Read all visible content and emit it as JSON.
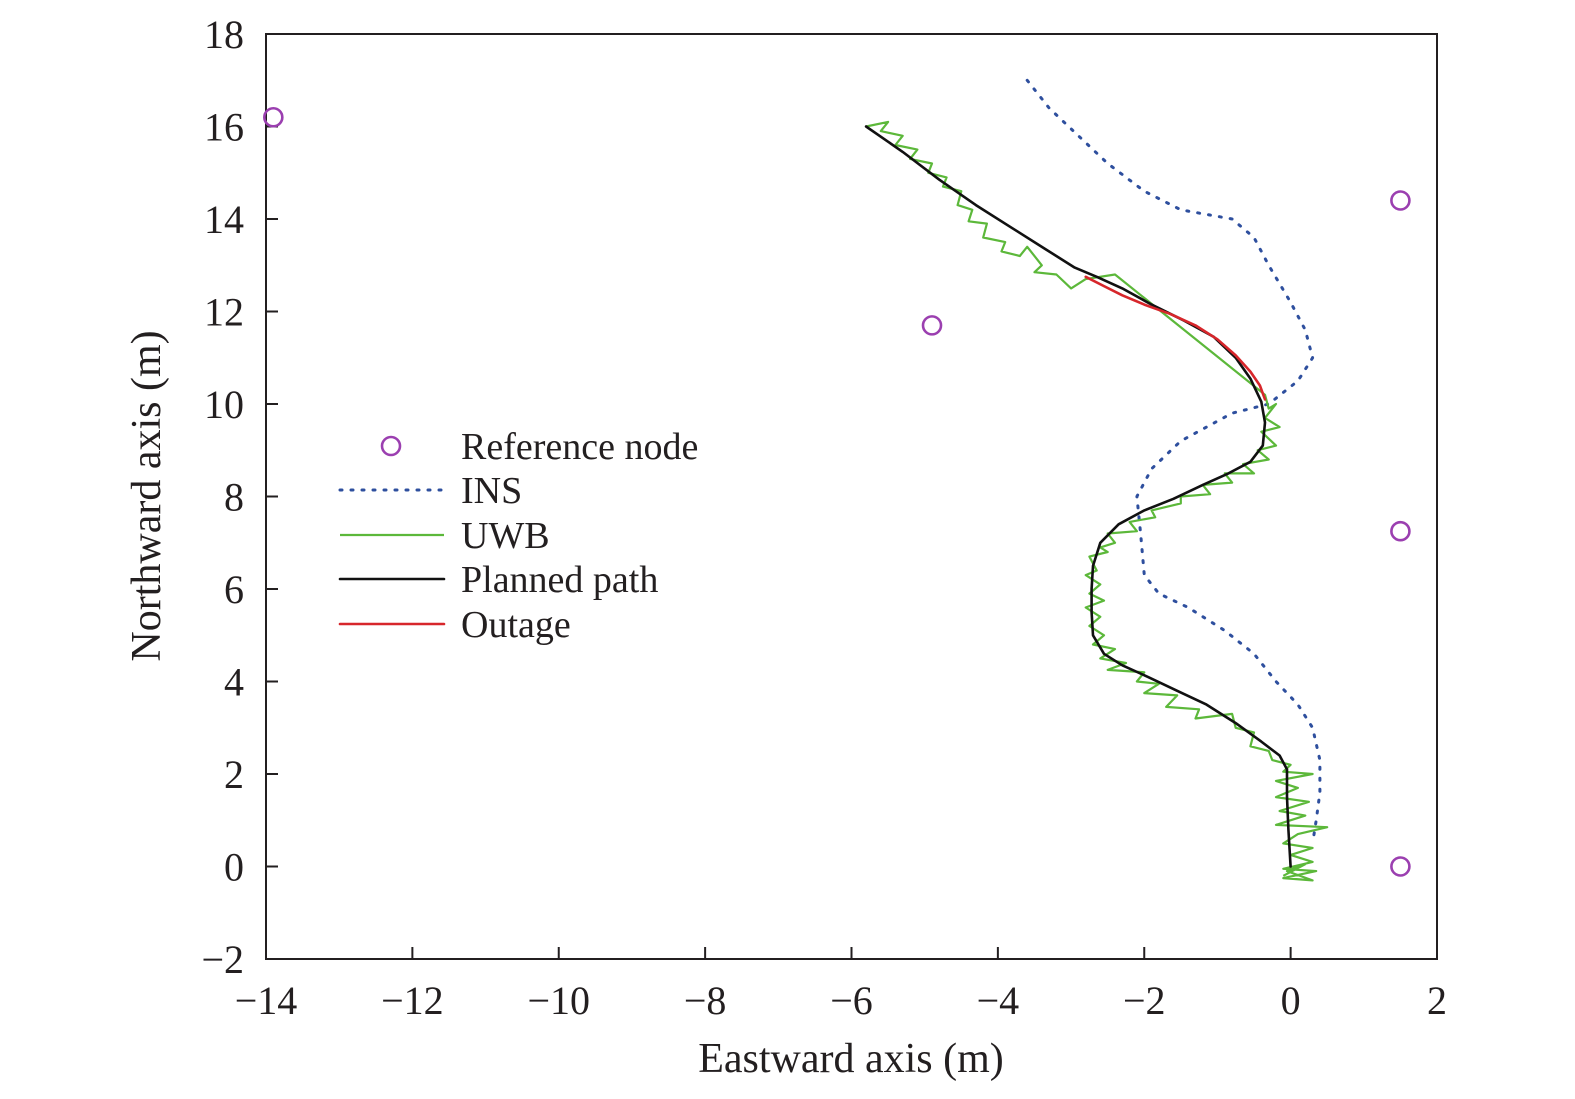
{
  "chart_data": {
    "type": "line",
    "title": "",
    "xlabel": "Eastward axis (m)",
    "ylabel": "Northward axis (m)",
    "xlim": [
      -14,
      2
    ],
    "ylim": [
      -2,
      18
    ],
    "xticks": [
      -14,
      -12,
      -10,
      -8,
      -6,
      -4,
      -2,
      0,
      2
    ],
    "yticks": [
      -2,
      0,
      2,
      4,
      6,
      8,
      10,
      12,
      14,
      16,
      18
    ],
    "xtick_labels": [
      "−14",
      "−12",
      "−10",
      "−8",
      "−6",
      "−4",
      "−2",
      "0",
      "2"
    ],
    "ytick_labels": [
      "−2",
      "0",
      "2",
      "4",
      "6",
      "8",
      "10",
      "12",
      "14",
      "16",
      "18"
    ],
    "grid": false,
    "legend_position": "left-center",
    "colors": {
      "reference": "#9b3fb0",
      "ins": "#2e4f9e",
      "uwb": "#5cb83a",
      "planned": "#111111",
      "outage": "#d7262b"
    },
    "series": [
      {
        "name": "Reference node",
        "kind": "markers",
        "points": [
          [
            -13.9,
            16.2
          ],
          [
            -4.9,
            11.7
          ],
          [
            1.5,
            14.4
          ],
          [
            1.5,
            7.25
          ],
          [
            1.5,
            0.0
          ]
        ]
      },
      {
        "name": "INS",
        "kind": "dotted-line",
        "points": [
          [
            -3.6,
            17.0
          ],
          [
            -3.3,
            16.4
          ],
          [
            -2.9,
            15.8
          ],
          [
            -2.5,
            15.2
          ],
          [
            -2.0,
            14.6
          ],
          [
            -1.5,
            14.2
          ],
          [
            -0.8,
            14.0
          ],
          [
            -0.5,
            13.6
          ],
          [
            -0.3,
            13.0
          ],
          [
            0.0,
            12.2
          ],
          [
            0.2,
            11.6
          ],
          [
            0.3,
            11.0
          ],
          [
            0.1,
            10.5
          ],
          [
            -0.3,
            10.0
          ],
          [
            -0.8,
            9.8
          ],
          [
            -1.5,
            9.2
          ],
          [
            -1.9,
            8.6
          ],
          [
            -2.1,
            8.0
          ],
          [
            -2.05,
            7.2
          ],
          [
            -2.0,
            6.3
          ],
          [
            -1.8,
            5.9
          ],
          [
            -1.4,
            5.6
          ],
          [
            -0.9,
            5.1
          ],
          [
            -0.5,
            4.6
          ],
          [
            -0.2,
            4.0
          ],
          [
            0.1,
            3.5
          ],
          [
            0.3,
            3.0
          ],
          [
            0.4,
            2.3
          ],
          [
            0.4,
            1.6
          ],
          [
            0.35,
            1.0
          ],
          [
            0.3,
            0.5
          ]
        ]
      },
      {
        "name": "UWB",
        "kind": "line",
        "points": [
          [
            -5.8,
            16.0
          ],
          [
            -5.5,
            16.1
          ],
          [
            -5.6,
            15.9
          ],
          [
            -5.3,
            15.8
          ],
          [
            -5.4,
            15.6
          ],
          [
            -5.1,
            15.5
          ],
          [
            -5.2,
            15.3
          ],
          [
            -4.9,
            15.2
          ],
          [
            -4.95,
            15.0
          ],
          [
            -4.7,
            14.9
          ],
          [
            -4.75,
            14.7
          ],
          [
            -4.5,
            14.6
          ],
          [
            -4.55,
            14.3
          ],
          [
            -4.35,
            14.2
          ],
          [
            -4.4,
            13.95
          ],
          [
            -4.15,
            13.9
          ],
          [
            -4.2,
            13.6
          ],
          [
            -3.9,
            13.5
          ],
          [
            -3.95,
            13.3
          ],
          [
            -3.7,
            13.2
          ],
          [
            -3.6,
            13.4
          ],
          [
            -3.4,
            13.0
          ],
          [
            -3.5,
            12.85
          ],
          [
            -3.2,
            12.8
          ],
          [
            -3.0,
            12.5
          ],
          [
            -2.8,
            12.7
          ],
          [
            -2.4,
            12.8
          ],
          [
            -0.35,
            10.2
          ],
          [
            -0.3,
            9.9
          ],
          [
            -0.2,
            10.0
          ],
          [
            -0.35,
            9.7
          ],
          [
            -0.15,
            9.5
          ],
          [
            -0.4,
            9.4
          ],
          [
            -0.2,
            9.1
          ],
          [
            -0.45,
            9.0
          ],
          [
            -0.3,
            8.8
          ],
          [
            -0.65,
            8.7
          ],
          [
            -0.5,
            8.5
          ],
          [
            -0.9,
            8.5
          ],
          [
            -0.8,
            8.3
          ],
          [
            -1.2,
            8.25
          ],
          [
            -1.1,
            8.05
          ],
          [
            -1.5,
            8.0
          ],
          [
            -1.5,
            7.85
          ],
          [
            -1.9,
            7.7
          ],
          [
            -1.85,
            7.55
          ],
          [
            -2.2,
            7.45
          ],
          [
            -2.1,
            7.25
          ],
          [
            -2.5,
            7.2
          ],
          [
            -2.4,
            7.0
          ],
          [
            -2.6,
            6.9
          ],
          [
            -2.5,
            6.8
          ],
          [
            -2.75,
            6.7
          ],
          [
            -2.65,
            6.4
          ],
          [
            -2.8,
            6.3
          ],
          [
            -2.6,
            6.1
          ],
          [
            -2.75,
            5.9
          ],
          [
            -2.55,
            5.75
          ],
          [
            -2.8,
            5.6
          ],
          [
            -2.6,
            5.4
          ],
          [
            -2.75,
            5.2
          ],
          [
            -2.55,
            5.0
          ],
          [
            -2.7,
            4.8
          ],
          [
            -2.4,
            4.7
          ],
          [
            -2.6,
            4.5
          ],
          [
            -2.25,
            4.4
          ],
          [
            -2.5,
            4.25
          ],
          [
            -2.0,
            4.2
          ],
          [
            -2.1,
            4.0
          ],
          [
            -1.8,
            3.95
          ],
          [
            -2.0,
            3.75
          ],
          [
            -1.55,
            3.7
          ],
          [
            -1.7,
            3.45
          ],
          [
            -1.25,
            3.4
          ],
          [
            -1.3,
            3.2
          ],
          [
            -0.8,
            3.3
          ],
          [
            -0.75,
            3.0
          ],
          [
            -0.5,
            2.9
          ],
          [
            -0.55,
            2.6
          ],
          [
            -0.3,
            2.5
          ],
          [
            -0.25,
            2.3
          ],
          [
            0.0,
            2.2
          ],
          [
            -0.1,
            2.05
          ],
          [
            0.3,
            2.0
          ],
          [
            -0.2,
            1.85
          ],
          [
            0.1,
            1.7
          ],
          [
            -0.2,
            1.5
          ],
          [
            0.25,
            1.4
          ],
          [
            -0.15,
            1.2
          ],
          [
            0.2,
            1.1
          ],
          [
            -0.2,
            0.9
          ],
          [
            0.5,
            0.85
          ],
          [
            0.1,
            0.7
          ],
          [
            -0.1,
            0.5
          ],
          [
            0.3,
            0.4
          ],
          [
            0.0,
            0.25
          ],
          [
            0.3,
            0.1
          ],
          [
            -0.1,
            -0.05
          ],
          [
            0.35,
            -0.1
          ],
          [
            -0.1,
            -0.25
          ],
          [
            0.3,
            -0.3
          ],
          [
            -0.05,
            -0.1
          ],
          [
            0.2,
            0.05
          ],
          [
            -0.1,
            -0.2
          ]
        ]
      },
      {
        "name": "Planned path",
        "kind": "line",
        "points": [
          [
            -5.8,
            16.0
          ],
          [
            -5.3,
            15.45
          ],
          [
            -4.8,
            14.85
          ],
          [
            -4.3,
            14.3
          ],
          [
            -3.8,
            13.8
          ],
          [
            -3.35,
            13.35
          ],
          [
            -2.95,
            12.95
          ],
          [
            -2.65,
            12.75
          ],
          [
            -2.3,
            12.5
          ],
          [
            -1.9,
            12.15
          ],
          [
            -1.45,
            11.8
          ],
          [
            -1.05,
            11.45
          ],
          [
            -0.75,
            11.0
          ],
          [
            -0.55,
            10.55
          ],
          [
            -0.4,
            10.05
          ],
          [
            -0.35,
            9.6
          ],
          [
            -0.38,
            9.1
          ],
          [
            -0.55,
            8.75
          ],
          [
            -0.85,
            8.5
          ],
          [
            -1.2,
            8.25
          ],
          [
            -1.6,
            7.95
          ],
          [
            -2.0,
            7.7
          ],
          [
            -2.35,
            7.4
          ],
          [
            -2.6,
            7.0
          ],
          [
            -2.7,
            6.5
          ],
          [
            -2.72,
            6.0
          ],
          [
            -2.72,
            5.5
          ],
          [
            -2.7,
            5.0
          ],
          [
            -2.55,
            4.6
          ],
          [
            -2.3,
            4.35
          ],
          [
            -1.95,
            4.1
          ],
          [
            -1.55,
            3.8
          ],
          [
            -1.15,
            3.5
          ],
          [
            -0.75,
            3.1
          ],
          [
            -0.4,
            2.7
          ],
          [
            -0.15,
            2.4
          ],
          [
            -0.05,
            2.1
          ],
          [
            -0.05,
            1.5
          ],
          [
            -0.03,
            0.8
          ],
          [
            0.0,
            0.0
          ]
        ]
      },
      {
        "name": "Outage",
        "kind": "line",
        "points": [
          [
            -2.8,
            12.75
          ],
          [
            -2.55,
            12.55
          ],
          [
            -2.3,
            12.35
          ],
          [
            -2.0,
            12.15
          ],
          [
            -1.65,
            11.95
          ],
          [
            -1.3,
            11.7
          ],
          [
            -1.0,
            11.4
          ],
          [
            -0.75,
            11.05
          ],
          [
            -0.55,
            10.7
          ],
          [
            -0.42,
            10.4
          ],
          [
            -0.35,
            10.1
          ]
        ]
      }
    ]
  }
}
